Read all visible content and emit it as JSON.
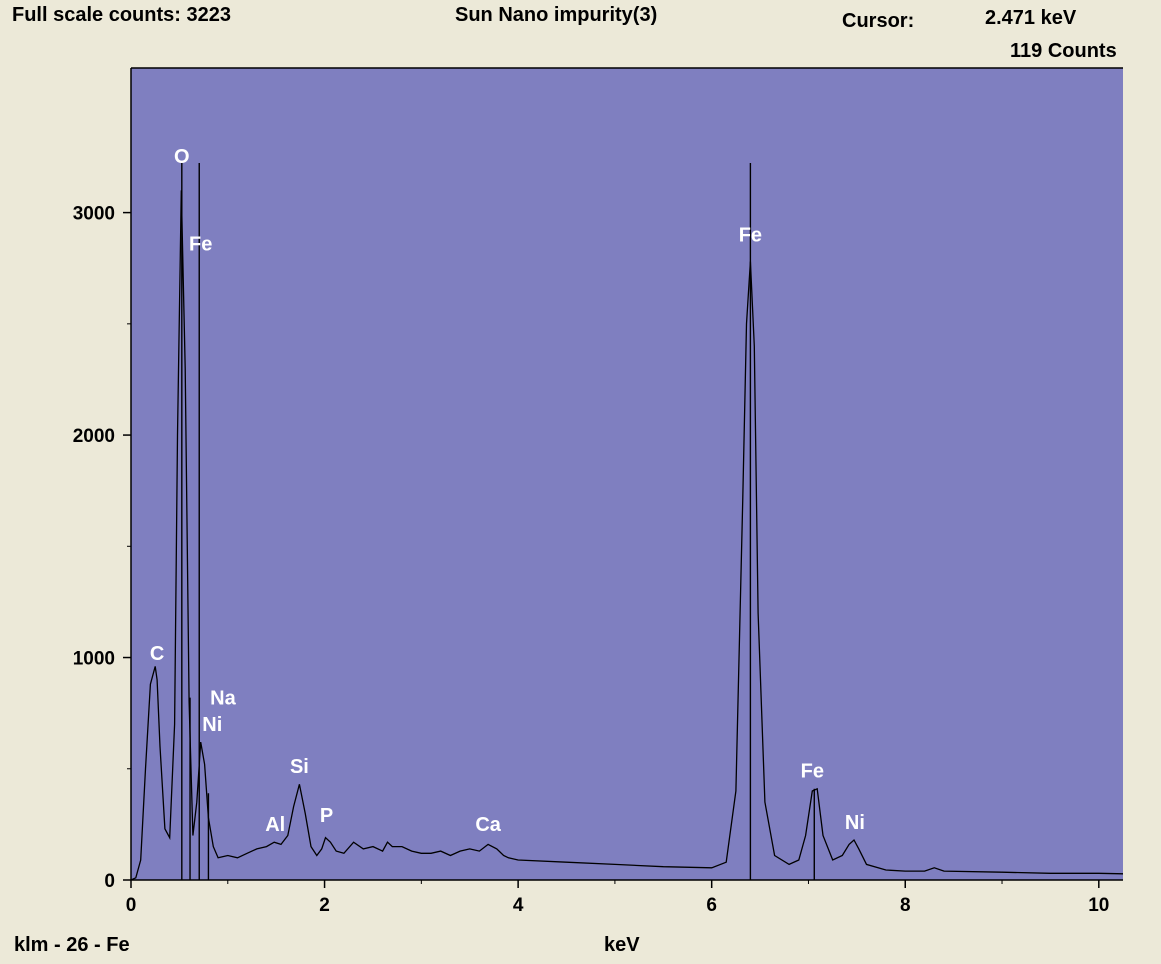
{
  "header": {
    "full_scale": "Full scale counts: 3223",
    "title": "Sun Nano impurity(3)",
    "cursor_label": "Cursor:",
    "cursor_kev": "2.471 keV",
    "cursor_counts": "119 Counts"
  },
  "footer": {
    "klm": "klm - 26 - Fe",
    "xlabel": "keV"
  },
  "colors": {
    "plot_bg": "#7f7fc0",
    "page_bg": "#ece9d8",
    "trace": "#000000",
    "label": "#ffffff"
  },
  "chart_data": {
    "type": "line",
    "title": "Sun Nano impurity(3)",
    "xlabel": "keV",
    "ylabel": "",
    "xlim": [
      0,
      10.25
    ],
    "ylim": [
      0,
      3650
    ],
    "xticks": [
      0,
      2,
      4,
      6,
      8,
      10
    ],
    "yticks": [
      0,
      1000,
      2000,
      3000
    ],
    "grid": false,
    "spectrum": {
      "x": [
        0,
        0.05,
        0.1,
        0.15,
        0.2,
        0.25,
        0.27,
        0.3,
        0.35,
        0.4,
        0.45,
        0.48,
        0.52,
        0.56,
        0.6,
        0.64,
        0.68,
        0.72,
        0.76,
        0.8,
        0.85,
        0.9,
        1.0,
        1.1,
        1.2,
        1.3,
        1.4,
        1.48,
        1.55,
        1.62,
        1.68,
        1.74,
        1.8,
        1.86,
        1.92,
        1.97,
        2.01,
        2.06,
        2.12,
        2.2,
        2.3,
        2.4,
        2.5,
        2.6,
        2.65,
        2.7,
        2.8,
        2.9,
        3.0,
        3.1,
        3.2,
        3.3,
        3.4,
        3.5,
        3.6,
        3.69,
        3.78,
        3.85,
        3.9,
        4.0,
        4.5,
        5.0,
        5.5,
        6.0,
        6.15,
        6.25,
        6.32,
        6.36,
        6.4,
        6.44,
        6.48,
        6.55,
        6.65,
        6.8,
        6.9,
        6.97,
        7.04,
        7.09,
        7.15,
        7.25,
        7.35,
        7.42,
        7.47,
        7.52,
        7.6,
        7.8,
        8.0,
        8.2,
        8.3,
        8.4,
        9.0,
        9.5,
        10.0,
        10.25
      ],
      "y": [
        0,
        10,
        90,
        500,
        880,
        960,
        900,
        600,
        230,
        190,
        700,
        2000,
        3100,
        2300,
        800,
        200,
        350,
        620,
        520,
        280,
        150,
        100,
        110,
        100,
        120,
        140,
        150,
        170,
        160,
        200,
        330,
        430,
        300,
        150,
        110,
        140,
        190,
        170,
        130,
        120,
        170,
        140,
        150,
        130,
        170,
        150,
        150,
        130,
        120,
        120,
        130,
        110,
        130,
        140,
        130,
        160,
        140,
        110,
        100,
        90,
        80,
        70,
        60,
        55,
        80,
        400,
        1700,
        2500,
        2780,
        2400,
        1200,
        350,
        110,
        70,
        90,
        200,
        400,
        410,
        200,
        90,
        110,
        160,
        180,
        140,
        70,
        45,
        40,
        40,
        55,
        40,
        35,
        30,
        30,
        28
      ]
    },
    "markers": [
      {
        "element": "O",
        "energy": 0.525,
        "counts": 3223
      },
      {
        "element": "Fe",
        "energy": 0.705,
        "counts": 3223
      },
      {
        "element": "Na",
        "energy": 0.61,
        "counts": 820
      },
      {
        "element": "Ni",
        "energy": 0.8,
        "counts": 390
      },
      {
        "element": "Fe",
        "energy": 6.4,
        "counts": 3223
      },
      {
        "element": "Fe",
        "energy": 7.06,
        "counts": 410
      }
    ],
    "annotations": [
      {
        "text": "O",
        "energy": 0.525,
        "counts": 3223
      },
      {
        "text": "Fe",
        "energy": 0.72,
        "counts": 2830
      },
      {
        "text": "C",
        "energy": 0.27,
        "counts": 990
      },
      {
        "text": "Na",
        "energy": 0.95,
        "counts": 790
      },
      {
        "text": "Ni",
        "energy": 0.84,
        "counts": 670
      },
      {
        "text": "Si",
        "energy": 1.74,
        "counts": 480
      },
      {
        "text": "Al",
        "energy": 1.49,
        "counts": 220
      },
      {
        "text": "P",
        "energy": 2.02,
        "counts": 260
      },
      {
        "text": "Ca",
        "energy": 3.69,
        "counts": 220
      },
      {
        "text": "Fe",
        "energy": 6.4,
        "counts": 2870
      },
      {
        "text": "Fe",
        "energy": 7.04,
        "counts": 460
      },
      {
        "text": "Ni",
        "energy": 7.48,
        "counts": 230
      }
    ]
  }
}
